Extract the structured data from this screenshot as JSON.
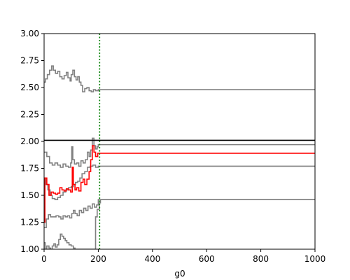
{
  "chart_data": {
    "type": "line",
    "title": "",
    "xlabel": "g0",
    "ylabel": "",
    "xlim": [
      0,
      1000
    ],
    "ylim": [
      1.0,
      3.0
    ],
    "xticks": [
      0,
      200,
      400,
      600,
      800,
      1000
    ],
    "yticks": [
      1.0,
      1.25,
      1.5,
      1.75,
      2.0,
      2.25,
      2.5,
      2.75,
      3.0
    ],
    "xtick_labels": [
      "0",
      "200",
      "400",
      "600",
      "800",
      "1000"
    ],
    "ytick_labels": [
      "1.00",
      "1.25",
      "1.50",
      "1.75",
      "2.00",
      "2.25",
      "2.50",
      "2.75",
      "3.00"
    ],
    "grid": false,
    "reference_lines": [
      {
        "orientation": "horizontal",
        "value": 2.01,
        "color": "#000000",
        "style": "solid"
      },
      {
        "orientation": "vertical",
        "value": 205,
        "color": "#008000",
        "style": "dotted"
      }
    ],
    "series": [
      {
        "color": "#808080",
        "steps": [
          [
            0,
            2.55
          ],
          [
            5,
            2.58
          ],
          [
            12,
            2.62
          ],
          [
            20,
            2.66
          ],
          [
            28,
            2.7
          ],
          [
            34,
            2.66
          ],
          [
            42,
            2.63
          ],
          [
            50,
            2.65
          ],
          [
            58,
            2.6
          ],
          [
            66,
            2.58
          ],
          [
            74,
            2.61
          ],
          [
            82,
            2.64
          ],
          [
            88,
            2.59
          ],
          [
            96,
            2.56
          ],
          [
            100,
            2.62
          ],
          [
            106,
            2.66
          ],
          [
            112,
            2.6
          ],
          [
            118,
            2.57
          ],
          [
            124,
            2.6
          ],
          [
            130,
            2.55
          ],
          [
            136,
            2.52
          ],
          [
            142,
            2.46
          ],
          [
            150,
            2.49
          ],
          [
            158,
            2.5
          ],
          [
            166,
            2.47
          ],
          [
            174,
            2.46
          ],
          [
            182,
            2.48
          ],
          [
            190,
            2.47
          ],
          [
            200,
            2.48
          ],
          [
            1000,
            2.48
          ]
        ]
      },
      {
        "color": "#808080",
        "steps": [
          [
            0,
            1.9
          ],
          [
            10,
            1.86
          ],
          [
            20,
            1.8
          ],
          [
            30,
            1.78
          ],
          [
            40,
            1.8
          ],
          [
            50,
            1.78
          ],
          [
            60,
            1.76
          ],
          [
            70,
            1.79
          ],
          [
            80,
            1.77
          ],
          [
            90,
            1.76
          ],
          [
            98,
            1.8
          ],
          [
            102,
            1.95
          ],
          [
            106,
            1.83
          ],
          [
            112,
            1.79
          ],
          [
            120,
            1.8
          ],
          [
            128,
            1.77
          ],
          [
            136,
            1.82
          ],
          [
            144,
            1.8
          ],
          [
            152,
            1.83
          ],
          [
            160,
            1.9
          ],
          [
            166,
            1.86
          ],
          [
            172,
            1.92
          ],
          [
            178,
            2.03
          ],
          [
            184,
            1.96
          ],
          [
            190,
            1.93
          ],
          [
            196,
            1.95
          ],
          [
            200,
            1.97
          ],
          [
            1000,
            1.97
          ]
        ]
      },
      {
        "color": "#808080",
        "steps": [
          [
            0,
            1.65
          ],
          [
            6,
            1.6
          ],
          [
            14,
            1.55
          ],
          [
            22,
            1.5
          ],
          [
            30,
            1.47
          ],
          [
            40,
            1.46
          ],
          [
            50,
            1.48
          ],
          [
            60,
            1.5
          ],
          [
            70,
            1.53
          ],
          [
            80,
            1.55
          ],
          [
            90,
            1.57
          ],
          [
            100,
            1.58
          ],
          [
            108,
            1.6
          ],
          [
            116,
            1.62
          ],
          [
            124,
            1.63
          ],
          [
            132,
            1.66
          ],
          [
            140,
            1.7
          ],
          [
            150,
            1.72
          ],
          [
            160,
            1.76
          ],
          [
            170,
            1.77
          ],
          [
            180,
            1.78
          ],
          [
            190,
            1.76
          ],
          [
            200,
            1.77
          ],
          [
            1000,
            1.77
          ]
        ]
      },
      {
        "color": "#808080",
        "steps": [
          [
            0,
            1.2
          ],
          [
            8,
            1.28
          ],
          [
            16,
            1.32
          ],
          [
            24,
            1.3
          ],
          [
            34,
            1.3
          ],
          [
            44,
            1.31
          ],
          [
            54,
            1.3
          ],
          [
            62,
            1.28
          ],
          [
            70,
            1.31
          ],
          [
            78,
            1.3
          ],
          [
            86,
            1.31
          ],
          [
            94,
            1.29
          ],
          [
            102,
            1.33
          ],
          [
            108,
            1.36
          ],
          [
            114,
            1.33
          ],
          [
            122,
            1.31
          ],
          [
            130,
            1.36
          ],
          [
            138,
            1.34
          ],
          [
            146,
            1.38
          ],
          [
            154,
            1.36
          ],
          [
            162,
            1.4
          ],
          [
            170,
            1.38
          ],
          [
            178,
            1.42
          ],
          [
            186,
            1.39
          ],
          [
            194,
            1.41
          ],
          [
            200,
            1.46
          ],
          [
            1000,
            1.46
          ]
        ]
      },
      {
        "color": "#808080",
        "steps": [
          [
            0,
            1.06
          ],
          [
            4,
            1.0
          ],
          [
            10,
            1.03
          ],
          [
            18,
            1.01
          ],
          [
            24,
            1.0
          ],
          [
            30,
            1.03
          ],
          [
            36,
            1.05
          ],
          [
            42,
            1.02
          ],
          [
            48,
            1.04
          ],
          [
            54,
            1.09
          ],
          [
            60,
            1.14
          ],
          [
            66,
            1.12
          ],
          [
            72,
            1.1
          ],
          [
            78,
            1.08
          ],
          [
            84,
            1.06
          ],
          [
            92,
            1.04
          ],
          [
            100,
            1.03
          ],
          [
            108,
            1.01
          ],
          [
            114,
            1.0
          ],
          [
            150,
            1.0
          ],
          [
            188,
            1.0
          ],
          [
            190,
            1.3
          ],
          [
            196,
            1.37
          ],
          [
            204,
            1.43
          ],
          [
            208,
            1.46
          ],
          [
            1000,
            1.46
          ]
        ]
      },
      {
        "color": "#ff0000",
        "steps": [
          [
            0,
            1.25
          ],
          [
            3,
            1.66
          ],
          [
            10,
            1.6
          ],
          [
            18,
            1.5
          ],
          [
            26,
            1.53
          ],
          [
            34,
            1.52
          ],
          [
            42,
            1.51
          ],
          [
            50,
            1.52
          ],
          [
            58,
            1.57
          ],
          [
            66,
            1.55
          ],
          [
            74,
            1.54
          ],
          [
            82,
            1.56
          ],
          [
            90,
            1.55
          ],
          [
            98,
            1.53
          ],
          [
            104,
            1.76
          ],
          [
            108,
            1.6
          ],
          [
            114,
            1.55
          ],
          [
            120,
            1.57
          ],
          [
            128,
            1.54
          ],
          [
            136,
            1.62
          ],
          [
            144,
            1.65
          ],
          [
            150,
            1.6
          ],
          [
            158,
            1.65
          ],
          [
            166,
            1.72
          ],
          [
            172,
            1.83
          ],
          [
            178,
            1.96
          ],
          [
            184,
            1.9
          ],
          [
            190,
            1.86
          ],
          [
            198,
            1.89
          ],
          [
            204,
            1.89
          ],
          [
            1000,
            1.89
          ]
        ]
      }
    ]
  }
}
